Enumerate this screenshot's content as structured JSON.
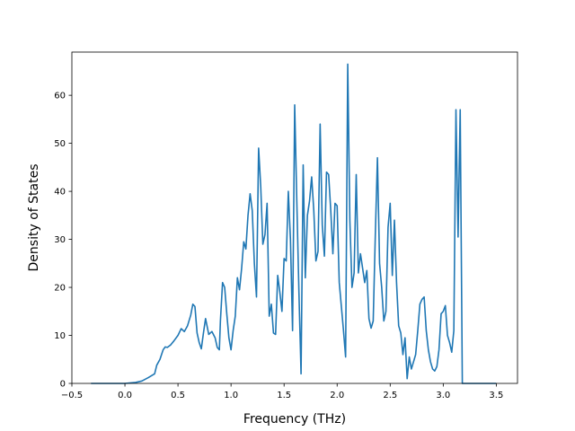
{
  "chart_data": {
    "type": "line",
    "title": "",
    "xlabel": "Frequency (THz)",
    "ylabel": "Density of States",
    "xlim": [
      -0.5,
      3.7
    ],
    "ylim": [
      0,
      69
    ],
    "xticks": [
      -0.5,
      0.0,
      0.5,
      1.0,
      1.5,
      2.0,
      2.5,
      3.0,
      3.5
    ],
    "xtick_labels": [
      "−0.5",
      "0.0",
      "0.5",
      "1.0",
      "1.5",
      "2.0",
      "2.5",
      "3.0",
      "3.5"
    ],
    "yticks": [
      0,
      10,
      20,
      30,
      40,
      50,
      60
    ],
    "ytick_labels": [
      "0",
      "10",
      "20",
      "30",
      "40",
      "50",
      "60"
    ],
    "grid": false,
    "legend": null,
    "series": [
      {
        "color": "#1f77b4",
        "x": [
          -0.32,
          0.0,
          0.1,
          0.16,
          0.22,
          0.28,
          0.3,
          0.33,
          0.36,
          0.38,
          0.4,
          0.43,
          0.46,
          0.5,
          0.53,
          0.56,
          0.59,
          0.62,
          0.64,
          0.66,
          0.68,
          0.7,
          0.72,
          0.74,
          0.76,
          0.79,
          0.82,
          0.85,
          0.87,
          0.89,
          0.9,
          0.92,
          0.94,
          0.96,
          0.98,
          1.0,
          1.02,
          1.04,
          1.06,
          1.08,
          1.1,
          1.12,
          1.14,
          1.16,
          1.18,
          1.2,
          1.22,
          1.24,
          1.26,
          1.28,
          1.3,
          1.32,
          1.34,
          1.36,
          1.38,
          1.4,
          1.42,
          1.44,
          1.46,
          1.48,
          1.5,
          1.52,
          1.54,
          1.56,
          1.58,
          1.6,
          1.62,
          1.64,
          1.66,
          1.68,
          1.7,
          1.72,
          1.74,
          1.76,
          1.78,
          1.8,
          1.82,
          1.84,
          1.86,
          1.88,
          1.9,
          1.92,
          1.94,
          1.96,
          1.98,
          2.0,
          2.02,
          2.04,
          2.06,
          2.08,
          2.1,
          2.12,
          2.14,
          2.16,
          2.18,
          2.2,
          2.22,
          2.24,
          2.26,
          2.28,
          2.3,
          2.32,
          2.34,
          2.36,
          2.38,
          2.4,
          2.42,
          2.44,
          2.46,
          2.48,
          2.5,
          2.52,
          2.54,
          2.56,
          2.58,
          2.6,
          2.62,
          2.64,
          2.66,
          2.68,
          2.7,
          2.72,
          2.74,
          2.76,
          2.78,
          2.8,
          2.82,
          2.84,
          2.86,
          2.88,
          2.9,
          2.92,
          2.94,
          2.96,
          2.98,
          3.0,
          3.02,
          3.04,
          3.06,
          3.08,
          3.1,
          3.12,
          3.14,
          3.16,
          3.18,
          3.2,
          3.3,
          3.5
        ],
        "y": [
          0,
          0,
          0.2,
          0.5,
          1.2,
          2.0,
          3.8,
          5.0,
          7.0,
          7.6,
          7.5,
          8.0,
          8.8,
          10.0,
          11.4,
          10.8,
          12.0,
          14.2,
          16.5,
          16.0,
          10.5,
          8.5,
          7.2,
          10.5,
          13.5,
          10.2,
          10.8,
          9.5,
          7.5,
          7.0,
          13.0,
          21.0,
          20.0,
          14.5,
          9.5,
          7.0,
          11.0,
          14.0,
          22.0,
          19.5,
          24.0,
          29.5,
          28.0,
          35.0,
          39.5,
          36.0,
          25.0,
          18.0,
          49.0,
          41.0,
          29.0,
          31.0,
          37.5,
          14.0,
          16.5,
          10.5,
          10.2,
          22.5,
          19.0,
          15.0,
          26.0,
          25.5,
          40.0,
          30.0,
          11.0,
          58.0,
          38.0,
          19.0,
          2.0,
          45.5,
          22.0,
          35.0,
          38.0,
          43.0,
          36.0,
          25.5,
          27.5,
          54.0,
          33.0,
          26.5,
          44.0,
          43.5,
          36.0,
          27.0,
          37.5,
          37.0,
          21.0,
          16.0,
          11.0,
          5.5,
          66.5,
          34.0,
          20.0,
          23.0,
          43.5,
          23.0,
          27.0,
          24.0,
          21.0,
          23.5,
          13.5,
          11.5,
          13.0,
          31.0,
          47.0,
          25.0,
          20.0,
          13.0,
          15.0,
          32.5,
          37.5,
          22.5,
          34.0,
          21.0,
          12.0,
          10.5,
          6.0,
          9.5,
          1.0,
          5.5,
          3.0,
          4.5,
          6.0,
          11.0,
          16.5,
          17.5,
          18.0,
          11.0,
          7.0,
          4.5,
          3.0,
          2.6,
          3.5,
          7.0,
          14.5,
          15.0,
          16.2,
          10.0,
          8.5,
          6.5,
          11.0,
          57.0,
          30.5,
          57.0,
          0,
          0,
          0,
          0
        ]
      }
    ]
  }
}
